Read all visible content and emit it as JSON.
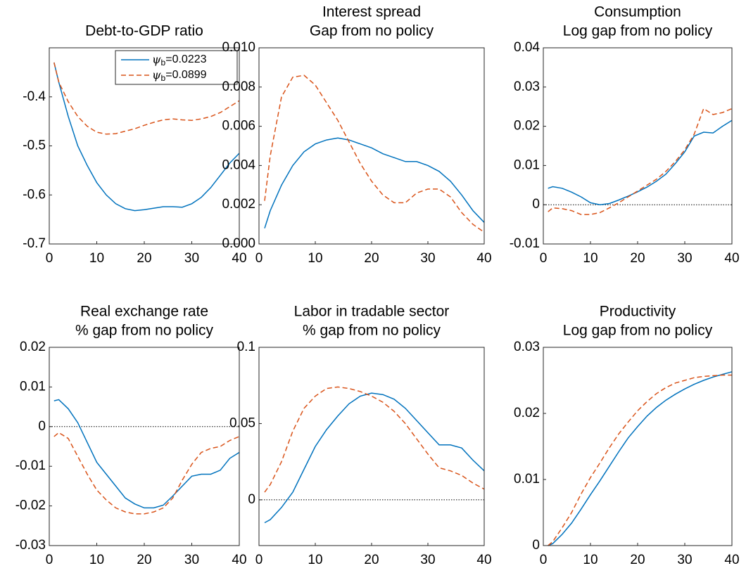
{
  "chart_data": [
    {
      "type": "line",
      "title": [
        "Debt-to-GDP ratio"
      ],
      "legend": "upper right",
      "x": [
        1,
        2,
        4,
        6,
        8,
        10,
        12,
        14,
        16,
        18,
        20,
        22,
        24,
        26,
        28,
        30,
        32,
        34,
        36,
        38,
        40
      ],
      "series": [
        {
          "name": "ψb=0.0223",
          "color": "#0072bd",
          "dash": false,
          "values": [
            -0.33,
            -0.37,
            -0.44,
            -0.5,
            -0.54,
            -0.575,
            -0.6,
            -0.618,
            -0.628,
            -0.632,
            -0.63,
            -0.627,
            -0.624,
            -0.624,
            -0.625,
            -0.618,
            -0.605,
            -0.585,
            -0.56,
            -0.535,
            -0.515
          ]
        },
        {
          "name": "ψb=0.0899",
          "color": "#d95319",
          "dash": true,
          "values": [
            -0.33,
            -0.37,
            -0.41,
            -0.44,
            -0.46,
            -0.472,
            -0.476,
            -0.475,
            -0.47,
            -0.465,
            -0.458,
            -0.452,
            -0.447,
            -0.445,
            -0.447,
            -0.448,
            -0.445,
            -0.44,
            -0.432,
            -0.42,
            -0.408
          ]
        }
      ],
      "xlim": [
        0,
        40
      ],
      "xticks": [
        0,
        10,
        20,
        30,
        40
      ],
      "ylim": [
        -0.7,
        -0.3
      ],
      "yticks": [
        -0.7,
        -0.6,
        -0.5,
        -0.4
      ],
      "zero_line": false
    },
    {
      "type": "line",
      "title": [
        "Interest spread",
        "Gap from no policy"
      ],
      "x": [
        1,
        2,
        4,
        6,
        8,
        10,
        12,
        14,
        16,
        18,
        20,
        22,
        24,
        26,
        28,
        30,
        32,
        34,
        36,
        38,
        40
      ],
      "series": [
        {
          "color": "#0072bd",
          "dash": false,
          "values": [
            0.0008,
            0.0017,
            0.003,
            0.004,
            0.0047,
            0.0051,
            0.0053,
            0.0054,
            0.0053,
            0.0051,
            0.0049,
            0.0046,
            0.0044,
            0.0042,
            0.0042,
            0.004,
            0.0037,
            0.0032,
            0.0025,
            0.0017,
            0.0011
          ]
        },
        {
          "color": "#d95319",
          "dash": true,
          "values": [
            0.0022,
            0.0045,
            0.0075,
            0.0085,
            0.0086,
            0.0081,
            0.0072,
            0.0063,
            0.0052,
            0.0041,
            0.0032,
            0.0025,
            0.0021,
            0.0021,
            0.0026,
            0.0028,
            0.0028,
            0.0024,
            0.0016,
            0.001,
            0.0006
          ]
        }
      ],
      "xlim": [
        0,
        40
      ],
      "xticks": [
        0,
        10,
        20,
        30,
        40
      ],
      "ylim": [
        0,
        0.01
      ],
      "yticks": [
        {
          "value": 0,
          "label": "0.000"
        },
        {
          "value": 0.002,
          "label": "0.002"
        },
        {
          "value": 0.004,
          "label": "0.004"
        },
        {
          "value": 0.006,
          "label": "0.006"
        },
        {
          "value": 0.008,
          "label": "0.008"
        },
        {
          "value": 0.01,
          "label": "0.010"
        }
      ],
      "zero_line": true
    },
    {
      "type": "line",
      "title": [
        "Consumption",
        "Log gap from no policy"
      ],
      "x": [
        1,
        2,
        4,
        6,
        8,
        10,
        12,
        14,
        16,
        18,
        20,
        22,
        24,
        26,
        28,
        30,
        32,
        34,
        36,
        38,
        40
      ],
      "series": [
        {
          "color": "#0072bd",
          "dash": false,
          "values": [
            0.0042,
            0.0046,
            0.0042,
            0.0032,
            0.002,
            0.0005,
            0,
            0.0003,
            0.0012,
            0.0022,
            0.0033,
            0.0045,
            0.006,
            0.0078,
            0.0105,
            0.0135,
            0.0175,
            0.0185,
            0.0183,
            0.02,
            0.0215
          ]
        },
        {
          "color": "#d95319",
          "dash": true,
          "values": [
            -0.0018,
            -0.0008,
            -0.001,
            -0.0015,
            -0.0025,
            -0.0025,
            -0.002,
            -0.0008,
            0.0005,
            0.002,
            0.0035,
            0.005,
            0.0065,
            0.0085,
            0.011,
            0.014,
            0.018,
            0.0245,
            0.023,
            0.0235,
            0.0245
          ]
        }
      ],
      "xlim": [
        0,
        40
      ],
      "xticks": [
        0,
        10,
        20,
        30,
        40
      ],
      "ylim": [
        -0.01,
        0.04
      ],
      "yticks": [
        -0.01,
        0,
        0.01,
        0.02,
        0.03,
        0.04
      ],
      "zero_line": true
    },
    {
      "type": "line",
      "title": [
        "Real exchange rate",
        "% gap from no policy"
      ],
      "x": [
        1,
        2,
        4,
        6,
        8,
        10,
        12,
        14,
        16,
        18,
        20,
        22,
        24,
        26,
        28,
        30,
        32,
        34,
        36,
        38,
        40
      ],
      "series": [
        {
          "color": "#0072bd",
          "dash": false,
          "values": [
            0.0065,
            0.0068,
            0.0045,
            0.001,
            -0.004,
            -0.009,
            -0.012,
            -0.015,
            -0.018,
            -0.0195,
            -0.0205,
            -0.0205,
            -0.0198,
            -0.0175,
            -0.015,
            -0.0125,
            -0.012,
            -0.012,
            -0.011,
            -0.008,
            -0.0065
          ]
        },
        {
          "color": "#d95319",
          "dash": true,
          "values": [
            -0.0025,
            -0.0015,
            -0.003,
            -0.0075,
            -0.012,
            -0.016,
            -0.0185,
            -0.0205,
            -0.0215,
            -0.022,
            -0.022,
            -0.0215,
            -0.0205,
            -0.018,
            -0.0135,
            -0.0095,
            -0.0065,
            -0.0055,
            -0.005,
            -0.0035,
            -0.0025
          ]
        }
      ],
      "xlim": [
        0,
        40
      ],
      "xticks": [
        0,
        10,
        20,
        30,
        40
      ],
      "ylim": [
        -0.03,
        0.02
      ],
      "yticks": [
        -0.03,
        -0.02,
        -0.01,
        0,
        0.01,
        0.02
      ],
      "zero_line": true
    },
    {
      "type": "line",
      "title": [
        "Labor in tradable sector",
        "% gap from no policy"
      ],
      "x": [
        1,
        2,
        4,
        6,
        8,
        10,
        12,
        14,
        16,
        18,
        20,
        22,
        24,
        26,
        28,
        30,
        32,
        34,
        36,
        38,
        40
      ],
      "series": [
        {
          "color": "#0072bd",
          "dash": false,
          "values": [
            -0.015,
            -0.013,
            -0.005,
            0.005,
            0.02,
            0.035,
            0.046,
            0.055,
            0.063,
            0.068,
            0.07,
            0.069,
            0.066,
            0.06,
            0.052,
            0.044,
            0.036,
            0.036,
            0.034,
            0.026,
            0.019
          ]
        },
        {
          "color": "#d95319",
          "dash": true,
          "values": [
            0.005,
            0.01,
            0.025,
            0.045,
            0.06,
            0.068,
            0.073,
            0.074,
            0.073,
            0.071,
            0.068,
            0.064,
            0.058,
            0.05,
            0.04,
            0.03,
            0.021,
            0.019,
            0.016,
            0.011,
            0.007
          ]
        }
      ],
      "xlim": [
        0,
        40
      ],
      "xticks": [
        0,
        10,
        20,
        30,
        40
      ],
      "ylim": [
        -0.03,
        0.1
      ],
      "yticks": [
        0,
        0.05,
        0.1
      ],
      "zero_line": true
    },
    {
      "type": "line",
      "title": [
        "Productivity",
        "Log gap from no policy"
      ],
      "x": [
        1,
        2,
        4,
        6,
        8,
        10,
        12,
        14,
        16,
        18,
        20,
        22,
        24,
        26,
        28,
        30,
        32,
        34,
        36,
        38,
        40
      ],
      "series": [
        {
          "color": "#0072bd",
          "dash": false,
          "values": [
            0,
            0.0003,
            0.0017,
            0.0034,
            0.0055,
            0.0077,
            0.0098,
            0.012,
            0.0142,
            0.0163,
            0.018,
            0.0196,
            0.0209,
            0.022,
            0.0229,
            0.0237,
            0.0244,
            0.025,
            0.0255,
            0.0259,
            0.0263
          ]
        },
        {
          "color": "#d95319",
          "dash": true,
          "values": [
            0,
            0.0006,
            0.0027,
            0.005,
            0.0078,
            0.0103,
            0.0125,
            0.0148,
            0.0169,
            0.0187,
            0.0204,
            0.0218,
            0.023,
            0.0239,
            0.0246,
            0.025,
            0.0254,
            0.0256,
            0.0257,
            0.0258,
            0.0258
          ]
        }
      ],
      "xlim": [
        0,
        40
      ],
      "xticks": [
        0,
        10,
        20,
        30,
        40
      ],
      "ylim": [
        0,
        0.03
      ],
      "yticks": [
        0,
        0.01,
        0.02,
        0.03
      ],
      "zero_line": true
    }
  ]
}
